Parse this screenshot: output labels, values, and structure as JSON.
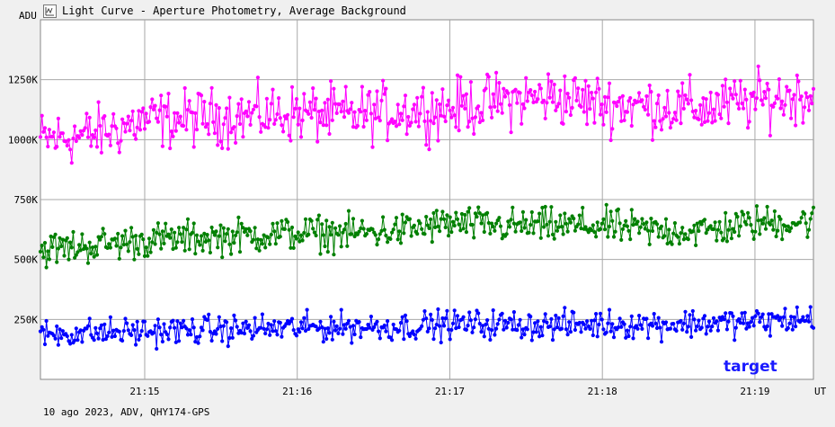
{
  "window": {
    "title": "Light Curve - Aperture Photometry, Average Background"
  },
  "footer": {
    "text": "10 ago 2023, ADV, QHY174-GPS"
  },
  "icons": {
    "title_icon": "chart-icon"
  },
  "chart_data": {
    "type": "line",
    "title": "Light Curve - Aperture Photometry, Average Background",
    "ylabel": "ADU",
    "xlabel": "UT",
    "ylim": [
      0,
      1500000
    ],
    "yticks": [
      {
        "value": 250000,
        "label": "250K"
      },
      {
        "value": 500000,
        "label": "500K"
      },
      {
        "value": 750000,
        "label": "750K"
      },
      {
        "value": 1000000,
        "label": "1000K"
      },
      {
        "value": 1250000,
        "label": "1250K"
      }
    ],
    "xlim": [
      "21:14:19",
      "21:19:23"
    ],
    "xticks": [
      "21:15",
      "21:16",
      "21:17",
      "21:18",
      "21:19"
    ],
    "grid": true,
    "series": [
      {
        "name": "",
        "color": "#ff00ff",
        "x": [
          "21:14:19",
          "21:14:40",
          "21:15:00",
          "21:15:20",
          "21:15:40",
          "21:16:00",
          "21:16:20",
          "21:16:40",
          "21:17:00",
          "21:17:20",
          "21:17:40",
          "21:18:00",
          "21:18:20",
          "21:18:40",
          "21:19:00",
          "21:19:20"
        ],
        "values": [
          1000000,
          1020000,
          1080000,
          1090000,
          1100000,
          1110000,
          1100000,
          1120000,
          1130000,
          1160000,
          1180000,
          1150000,
          1140000,
          1130000,
          1160000,
          1190000
        ]
      },
      {
        "name": "",
        "color": "#008000",
        "x": [
          "21:14:19",
          "21:14:40",
          "21:15:00",
          "21:15:20",
          "21:15:40",
          "21:16:00",
          "21:16:20",
          "21:16:40",
          "21:17:00",
          "21:17:20",
          "21:17:40",
          "21:18:00",
          "21:18:20",
          "21:18:40",
          "21:19:00",
          "21:19:20"
        ],
        "values": [
          540000,
          560000,
          580000,
          590000,
          600000,
          610000,
          610000,
          620000,
          650000,
          640000,
          640000,
          640000,
          620000,
          620000,
          650000,
          660000
        ]
      },
      {
        "name": "target",
        "color": "#0000ff",
        "x": [
          "21:14:19",
          "21:14:40",
          "21:15:00",
          "21:15:20",
          "21:15:40",
          "21:16:00",
          "21:16:20",
          "21:16:40",
          "21:17:00",
          "21:17:20",
          "21:17:40",
          "21:18:00",
          "21:18:20",
          "21:18:40",
          "21:19:00",
          "21:19:20"
        ],
        "values": [
          190000,
          195000,
          200000,
          205000,
          210000,
          215000,
          220000,
          220000,
          230000,
          230000,
          225000,
          230000,
          230000,
          235000,
          240000,
          250000
        ]
      }
    ],
    "annotation": "target"
  }
}
